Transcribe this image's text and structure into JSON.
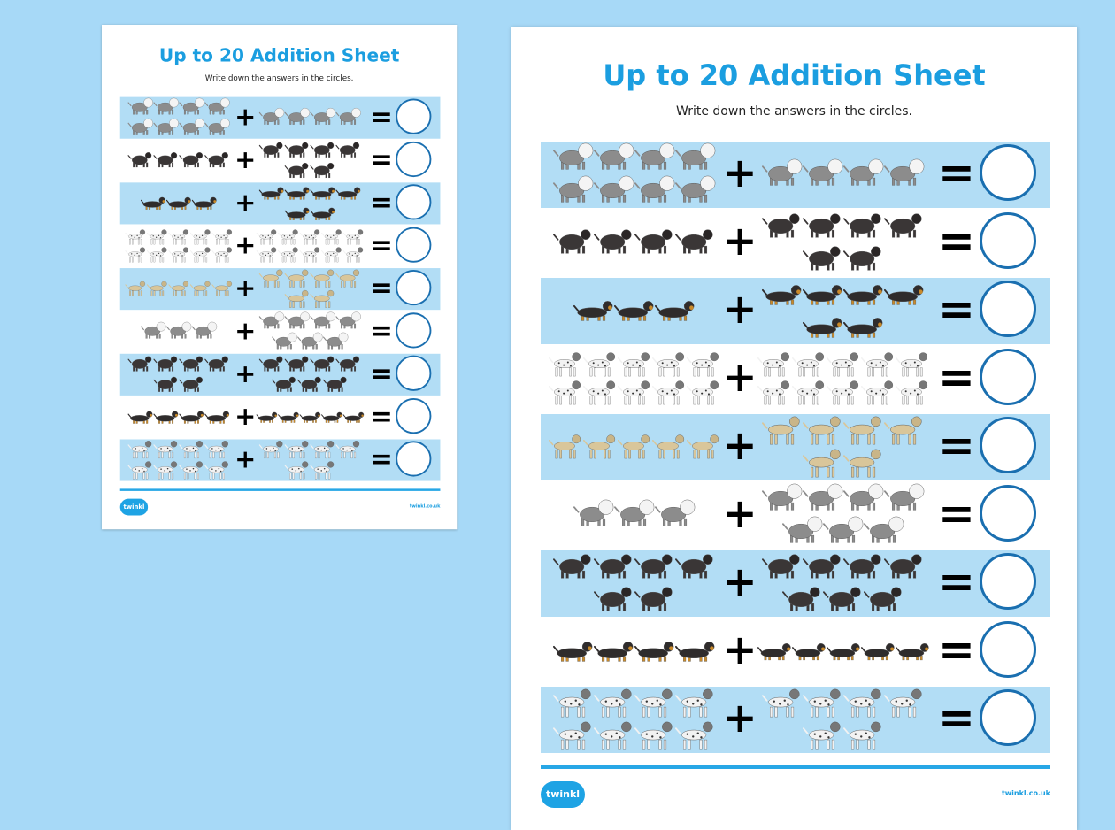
{
  "worksheet": {
    "title": "Up to 20 Addition Sheet",
    "subtitle": "Write down the answers in the circles.",
    "plus_symbol": "+",
    "equals_symbol": "=",
    "logo_text": "twinkl",
    "footer_url": "twinkl.co.uk"
  },
  "colors": {
    "background": "#a7d9f7",
    "title": "#1b9ee0",
    "stripe": "#b2ddf5",
    "answer_circle": "#1a6fb0"
  },
  "breeds": {
    "sheepdog": {
      "body": "#8c8c8c",
      "head": "#f4f4f4"
    },
    "black-dog": {
      "body": "#3a3636",
      "head": "#2a2626"
    },
    "dachshund": {
      "body": "#2f2c2c",
      "head": "#c98a2a"
    },
    "dalmatian": {
      "body": "#f2f2f2",
      "head": "#777777"
    },
    "greyhound": {
      "body": "#d9c69a",
      "head": "#c9b588"
    }
  },
  "problems": [
    {
      "breed": "sheepdog",
      "a": 8,
      "b": 4
    },
    {
      "breed": "black-dog",
      "a": 4,
      "b": 6
    },
    {
      "breed": "dachshund",
      "a": 3,
      "b": 6
    },
    {
      "breed": "dalmatian",
      "a": 10,
      "b": 10
    },
    {
      "breed": "greyhound",
      "a": 5,
      "b": 6
    },
    {
      "breed": "sheepdog",
      "a": 3,
      "b": 7
    },
    {
      "breed": "black-dog",
      "a": 6,
      "b": 7
    },
    {
      "breed": "dachshund",
      "a": 4,
      "b": 5
    },
    {
      "breed": "dalmatian",
      "a": 8,
      "b": 6
    }
  ]
}
